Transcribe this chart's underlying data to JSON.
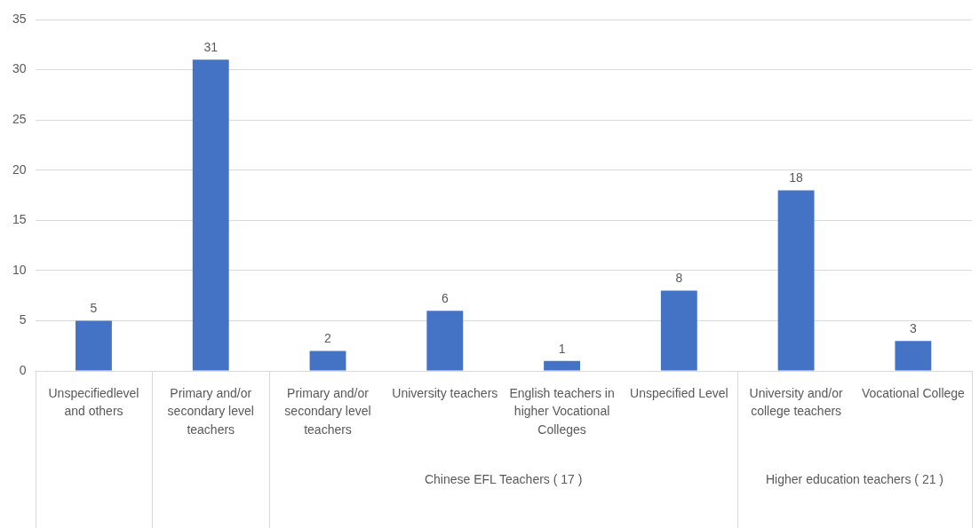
{
  "chart_data": {
    "type": "bar",
    "categories": [
      "Unspecifiedlevel and others",
      "Primary and/or secondary level teachers",
      "Primary and/or secondary level teachers",
      "University teachers",
      "English teachers in higher Vocational Colleges",
      "Unspecified Level",
      "University and/or college teachers",
      "Vocational College"
    ],
    "values": [
      5,
      31,
      2,
      6,
      1,
      8,
      18,
      3
    ],
    "color": "#4472c4",
    "ylim": [
      0,
      35
    ],
    "yticks": [
      0,
      5,
      10,
      15,
      20,
      25,
      30,
      35
    ],
    "grid": "y",
    "data_labels": true,
    "annotations": [
      "Chinese EFL Teachers ( 17 )",
      "Higher education teachers ( 21 )"
    ]
  }
}
